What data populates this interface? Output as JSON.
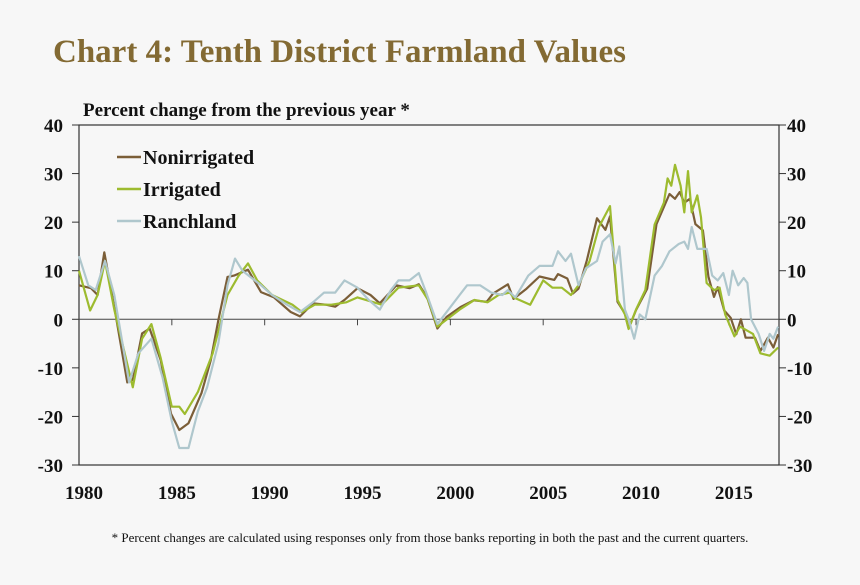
{
  "title": "Chart 4: Tenth District Farmland Values",
  "footnote": "* Percent changes are calculated using responses only from those banks reporting in both the past and the current quarters.",
  "chart_data": {
    "type": "line",
    "ylabel": "Percent change from the previous year *",
    "xlim": [
      1980,
      2017.7
    ],
    "ylim": [
      -30,
      40
    ],
    "x_ticks": [
      "1980",
      "1985",
      "1990",
      "1995",
      "2000",
      "2005",
      "2010",
      "2015"
    ],
    "y_ticks": [
      "40",
      "30",
      "20",
      "10",
      "0",
      "-10",
      "-20",
      "-30"
    ],
    "grid": false,
    "legend_position": "top-left",
    "series": [
      {
        "name": "Nonirrigated",
        "color": "#7b5e38",
        "points": [
          [
            1980,
            7
          ],
          [
            1980.65,
            6.4
          ],
          [
            1981,
            5
          ],
          [
            1981.36,
            13.8
          ],
          [
            1981.9,
            2.5
          ],
          [
            1982.6,
            -13
          ],
          [
            1982.9,
            -12.5
          ],
          [
            1983.4,
            -2.9
          ],
          [
            1983.8,
            -1.9
          ],
          [
            1984.4,
            -8.4
          ],
          [
            1984.95,
            -19.4
          ],
          [
            1985.4,
            -22.8
          ],
          [
            1985.9,
            -21.4
          ],
          [
            1986.6,
            -15.2
          ],
          [
            1987.1,
            -8.4
          ],
          [
            1987.5,
            -0.2
          ],
          [
            1988,
            8.7
          ],
          [
            1988.35,
            9
          ],
          [
            1989.1,
            10.2
          ],
          [
            1989.8,
            5.6
          ],
          [
            1990.5,
            4.5
          ],
          [
            1991.4,
            1.5
          ],
          [
            1991.9,
            0.6
          ],
          [
            1992.6,
            3.3
          ],
          [
            1993.3,
            3
          ],
          [
            1993.8,
            2.6
          ],
          [
            1994.3,
            4
          ],
          [
            1995,
            6.4
          ],
          [
            1995.7,
            5
          ],
          [
            1996.2,
            3.3
          ],
          [
            1997.1,
            7
          ],
          [
            1997.8,
            6.4
          ],
          [
            1998.3,
            7.2
          ],
          [
            1998.75,
            4.5
          ],
          [
            1999.3,
            -1.9
          ],
          [
            1999.8,
            0.5
          ],
          [
            2000.54,
            2.5
          ],
          [
            2001.25,
            3.9
          ],
          [
            2001.96,
            3.6
          ],
          [
            2002.3,
            5.3
          ],
          [
            2003.1,
            7.2
          ],
          [
            2003.4,
            4.2
          ],
          [
            2004.1,
            6.3
          ],
          [
            2004.8,
            8.8
          ],
          [
            2005.6,
            8.1
          ],
          [
            2005.8,
            9.3
          ],
          [
            2006.3,
            8.4
          ],
          [
            2006.6,
            5.3
          ],
          [
            2006.9,
            6.3
          ],
          [
            2007.35,
            12.1
          ],
          [
            2007.9,
            20.8
          ],
          [
            2008.35,
            18.4
          ],
          [
            2008.6,
            21.2
          ],
          [
            2009,
            3.6
          ],
          [
            2009.4,
            1.2
          ],
          [
            2009.6,
            -1.9
          ],
          [
            2010,
            1.9
          ],
          [
            2010.6,
            6.3
          ],
          [
            2011.1,
            19.6
          ],
          [
            2011.8,
            25.8
          ],
          [
            2012.1,
            24.8
          ],
          [
            2012.35,
            26.2
          ],
          [
            2012.6,
            24
          ],
          [
            2012.9,
            24.8
          ],
          [
            2013.2,
            19.6
          ],
          [
            2013.6,
            18.3
          ],
          [
            2013.9,
            8.8
          ],
          [
            2014.2,
            4.6
          ],
          [
            2014.4,
            6.6
          ],
          [
            2014.75,
            1.8
          ],
          [
            2015.1,
            0.3
          ],
          [
            2015.4,
            -3.1
          ],
          [
            2015.65,
            0
          ],
          [
            2015.9,
            -3.8
          ],
          [
            2016.4,
            -3.8
          ],
          [
            2016.7,
            -6.5
          ],
          [
            2017.1,
            -3.8
          ],
          [
            2017.4,
            -5.8
          ],
          [
            2017.65,
            -3.1
          ]
        ]
      },
      {
        "name": "Irrigated",
        "color": "#9dbb2f",
        "points": [
          [
            1980,
            10
          ],
          [
            1980.6,
            1.8
          ],
          [
            1981,
            5
          ],
          [
            1981.4,
            12
          ],
          [
            1981.9,
            2
          ],
          [
            1982.9,
            -14
          ],
          [
            1983.4,
            -4
          ],
          [
            1983.9,
            -1
          ],
          [
            1984.4,
            -8
          ],
          [
            1985,
            -18
          ],
          [
            1985.4,
            -18
          ],
          [
            1985.7,
            -19.5
          ],
          [
            1986.4,
            -15
          ],
          [
            1987.2,
            -7
          ],
          [
            1987.6,
            -1
          ],
          [
            1988,
            5
          ],
          [
            1988.6,
            9
          ],
          [
            1989.1,
            11.5
          ],
          [
            1989.6,
            8
          ],
          [
            1990.4,
            5
          ],
          [
            1991.5,
            3
          ],
          [
            1992,
            1.5
          ],
          [
            1992.7,
            3
          ],
          [
            1993.6,
            3
          ],
          [
            1994.4,
            3.5
          ],
          [
            1995,
            4.5
          ],
          [
            1996.3,
            3
          ],
          [
            1997.2,
            6.5
          ],
          [
            1998.3,
            7
          ],
          [
            1998.8,
            4
          ],
          [
            1999.3,
            -1.5
          ],
          [
            2000.5,
            2
          ],
          [
            2001.3,
            4
          ],
          [
            2002,
            3.5
          ],
          [
            2002.6,
            5
          ],
          [
            2003.2,
            5.5
          ],
          [
            2003.4,
            4.5
          ],
          [
            2004.3,
            3
          ],
          [
            2005,
            8
          ],
          [
            2005.5,
            6.5
          ],
          [
            2006,
            6.5
          ],
          [
            2006.5,
            5
          ],
          [
            2006.9,
            7
          ],
          [
            2007.5,
            12
          ],
          [
            2008,
            19
          ],
          [
            2008.6,
            23.3
          ],
          [
            2009,
            4
          ],
          [
            2009.4,
            1
          ],
          [
            2009.6,
            -2
          ],
          [
            2010,
            2
          ],
          [
            2010.5,
            6
          ],
          [
            2011,
            19.5
          ],
          [
            2011.5,
            24
          ],
          [
            2011.7,
            29
          ],
          [
            2011.9,
            27.5
          ],
          [
            2012.1,
            31.8
          ],
          [
            2012.4,
            27.5
          ],
          [
            2012.6,
            22
          ],
          [
            2012.8,
            30.5
          ],
          [
            2013,
            22
          ],
          [
            2013.3,
            25.5
          ],
          [
            2013.5,
            21
          ],
          [
            2013.8,
            7.5
          ],
          [
            2014.2,
            6
          ],
          [
            2014.5,
            6.5
          ],
          [
            2014.8,
            1
          ],
          [
            2015.3,
            -3.5
          ],
          [
            2015.6,
            -1.5
          ],
          [
            2016.3,
            -3
          ],
          [
            2016.7,
            -7
          ],
          [
            2017.2,
            -7.5
          ],
          [
            2017.65,
            -5.8
          ]
        ]
      },
      {
        "name": "Ranchland",
        "color": "#afc7cd",
        "points": [
          [
            1980,
            13
          ],
          [
            1980.5,
            7
          ],
          [
            1980.9,
            6
          ],
          [
            1981.4,
            12
          ],
          [
            1981.9,
            5
          ],
          [
            1982.7,
            -13
          ],
          [
            1983.2,
            -7
          ],
          [
            1983.9,
            -4
          ],
          [
            1984.5,
            -12
          ],
          [
            1985,
            -21
          ],
          [
            1985.4,
            -26.5
          ],
          [
            1985.9,
            -26.5
          ],
          [
            1986.4,
            -19
          ],
          [
            1986.9,
            -14
          ],
          [
            1987.5,
            -5
          ],
          [
            1988,
            7
          ],
          [
            1988.4,
            12.5
          ],
          [
            1988.8,
            10
          ],
          [
            1989.3,
            8.5
          ],
          [
            1989.8,
            7
          ],
          [
            1990.4,
            5
          ],
          [
            1991.2,
            3
          ],
          [
            1991.9,
            1.5
          ],
          [
            1992.6,
            3.5
          ],
          [
            1993.2,
            5.5
          ],
          [
            1993.8,
            5.5
          ],
          [
            1994.3,
            8
          ],
          [
            1995,
            6.5
          ],
          [
            1995.6,
            4
          ],
          [
            1996.2,
            2
          ],
          [
            1996.8,
            6
          ],
          [
            1997.2,
            8
          ],
          [
            1997.8,
            8
          ],
          [
            1998.3,
            9.5
          ],
          [
            1998.7,
            5.5
          ],
          [
            1999.3,
            -1
          ],
          [
            1999.9,
            2
          ],
          [
            2000.5,
            5
          ],
          [
            2000.9,
            7
          ],
          [
            2001.6,
            7
          ],
          [
            2002.2,
            5.5
          ],
          [
            2002.8,
            5
          ],
          [
            2003.1,
            6
          ],
          [
            2003.5,
            4.5
          ],
          [
            2004.2,
            9
          ],
          [
            2004.8,
            11
          ],
          [
            2005.5,
            11
          ],
          [
            2005.8,
            14
          ],
          [
            2006.2,
            12
          ],
          [
            2006.5,
            13.5
          ],
          [
            2006.9,
            7
          ],
          [
            2007.3,
            10.5
          ],
          [
            2007.9,
            12
          ],
          [
            2008.2,
            16
          ],
          [
            2008.6,
            17.5
          ],
          [
            2008.9,
            11.5
          ],
          [
            2009.1,
            15
          ],
          [
            2009.4,
            2
          ],
          [
            2009.6,
            0
          ],
          [
            2009.9,
            -4
          ],
          [
            2010.2,
            1
          ],
          [
            2010.5,
            0
          ],
          [
            2011,
            9
          ],
          [
            2011.4,
            11
          ],
          [
            2011.8,
            14
          ],
          [
            2012.3,
            15.5
          ],
          [
            2012.6,
            16
          ],
          [
            2012.8,
            14.5
          ],
          [
            2013,
            19
          ],
          [
            2013.3,
            14.5
          ],
          [
            2013.8,
            14.5
          ],
          [
            2014.1,
            9
          ],
          [
            2014.4,
            8
          ],
          [
            2014.7,
            9.5
          ],
          [
            2015,
            5
          ],
          [
            2015.2,
            10
          ],
          [
            2015.5,
            7
          ],
          [
            2015.8,
            8.5
          ],
          [
            2016,
            7.5
          ],
          [
            2016.2,
            0
          ],
          [
            2016.6,
            -3
          ],
          [
            2016.9,
            -6.5
          ],
          [
            2017.2,
            -3
          ],
          [
            2017.4,
            -4
          ],
          [
            2017.65,
            -1.5
          ]
        ]
      }
    ]
  }
}
